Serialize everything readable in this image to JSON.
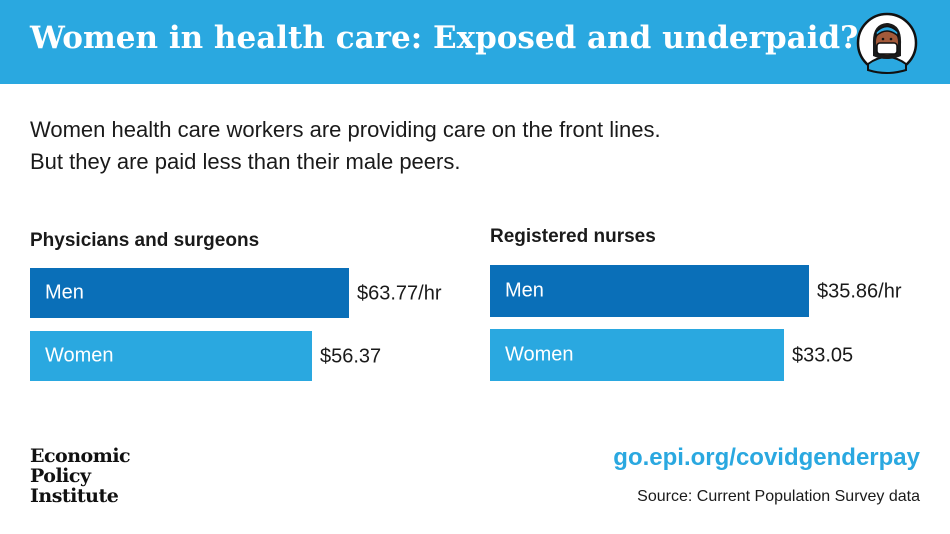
{
  "header": {
    "title": "Women in health care: Exposed and underpaid?",
    "background_color": "#2aa8e0",
    "icon": "masked-health-worker-icon"
  },
  "intro": {
    "line1": "Women health care workers are providing care on the front lines.",
    "line2": "But they are paid less than their male peers."
  },
  "chart_data": [
    {
      "type": "bar",
      "orientation": "horizontal",
      "title": "Physicians and surgeons",
      "categories": [
        "Men",
        "Women"
      ],
      "values": [
        63.77,
        56.37
      ],
      "value_labels": [
        "$63.77/hr",
        "$56.37"
      ],
      "colors": [
        "#0a6fb8",
        "#2aa8e0"
      ],
      "xlim": [
        0,
        80
      ]
    },
    {
      "type": "bar",
      "orientation": "horizontal",
      "title": "Registered nurses",
      "categories": [
        "Men",
        "Women"
      ],
      "values": [
        35.86,
        33.05
      ],
      "value_labels": [
        "$35.86/hr",
        "$33.05"
      ],
      "colors": [
        "#0a6fb8",
        "#2aa8e0"
      ],
      "xlim": [
        0,
        45
      ]
    }
  ],
  "footer": {
    "logo_lines": [
      "Economic",
      "Policy",
      "Institute"
    ],
    "link": "go.epi.org/covidgenderpay",
    "source": "Source: Current Population Survey data",
    "link_color": "#2aa8e0"
  }
}
